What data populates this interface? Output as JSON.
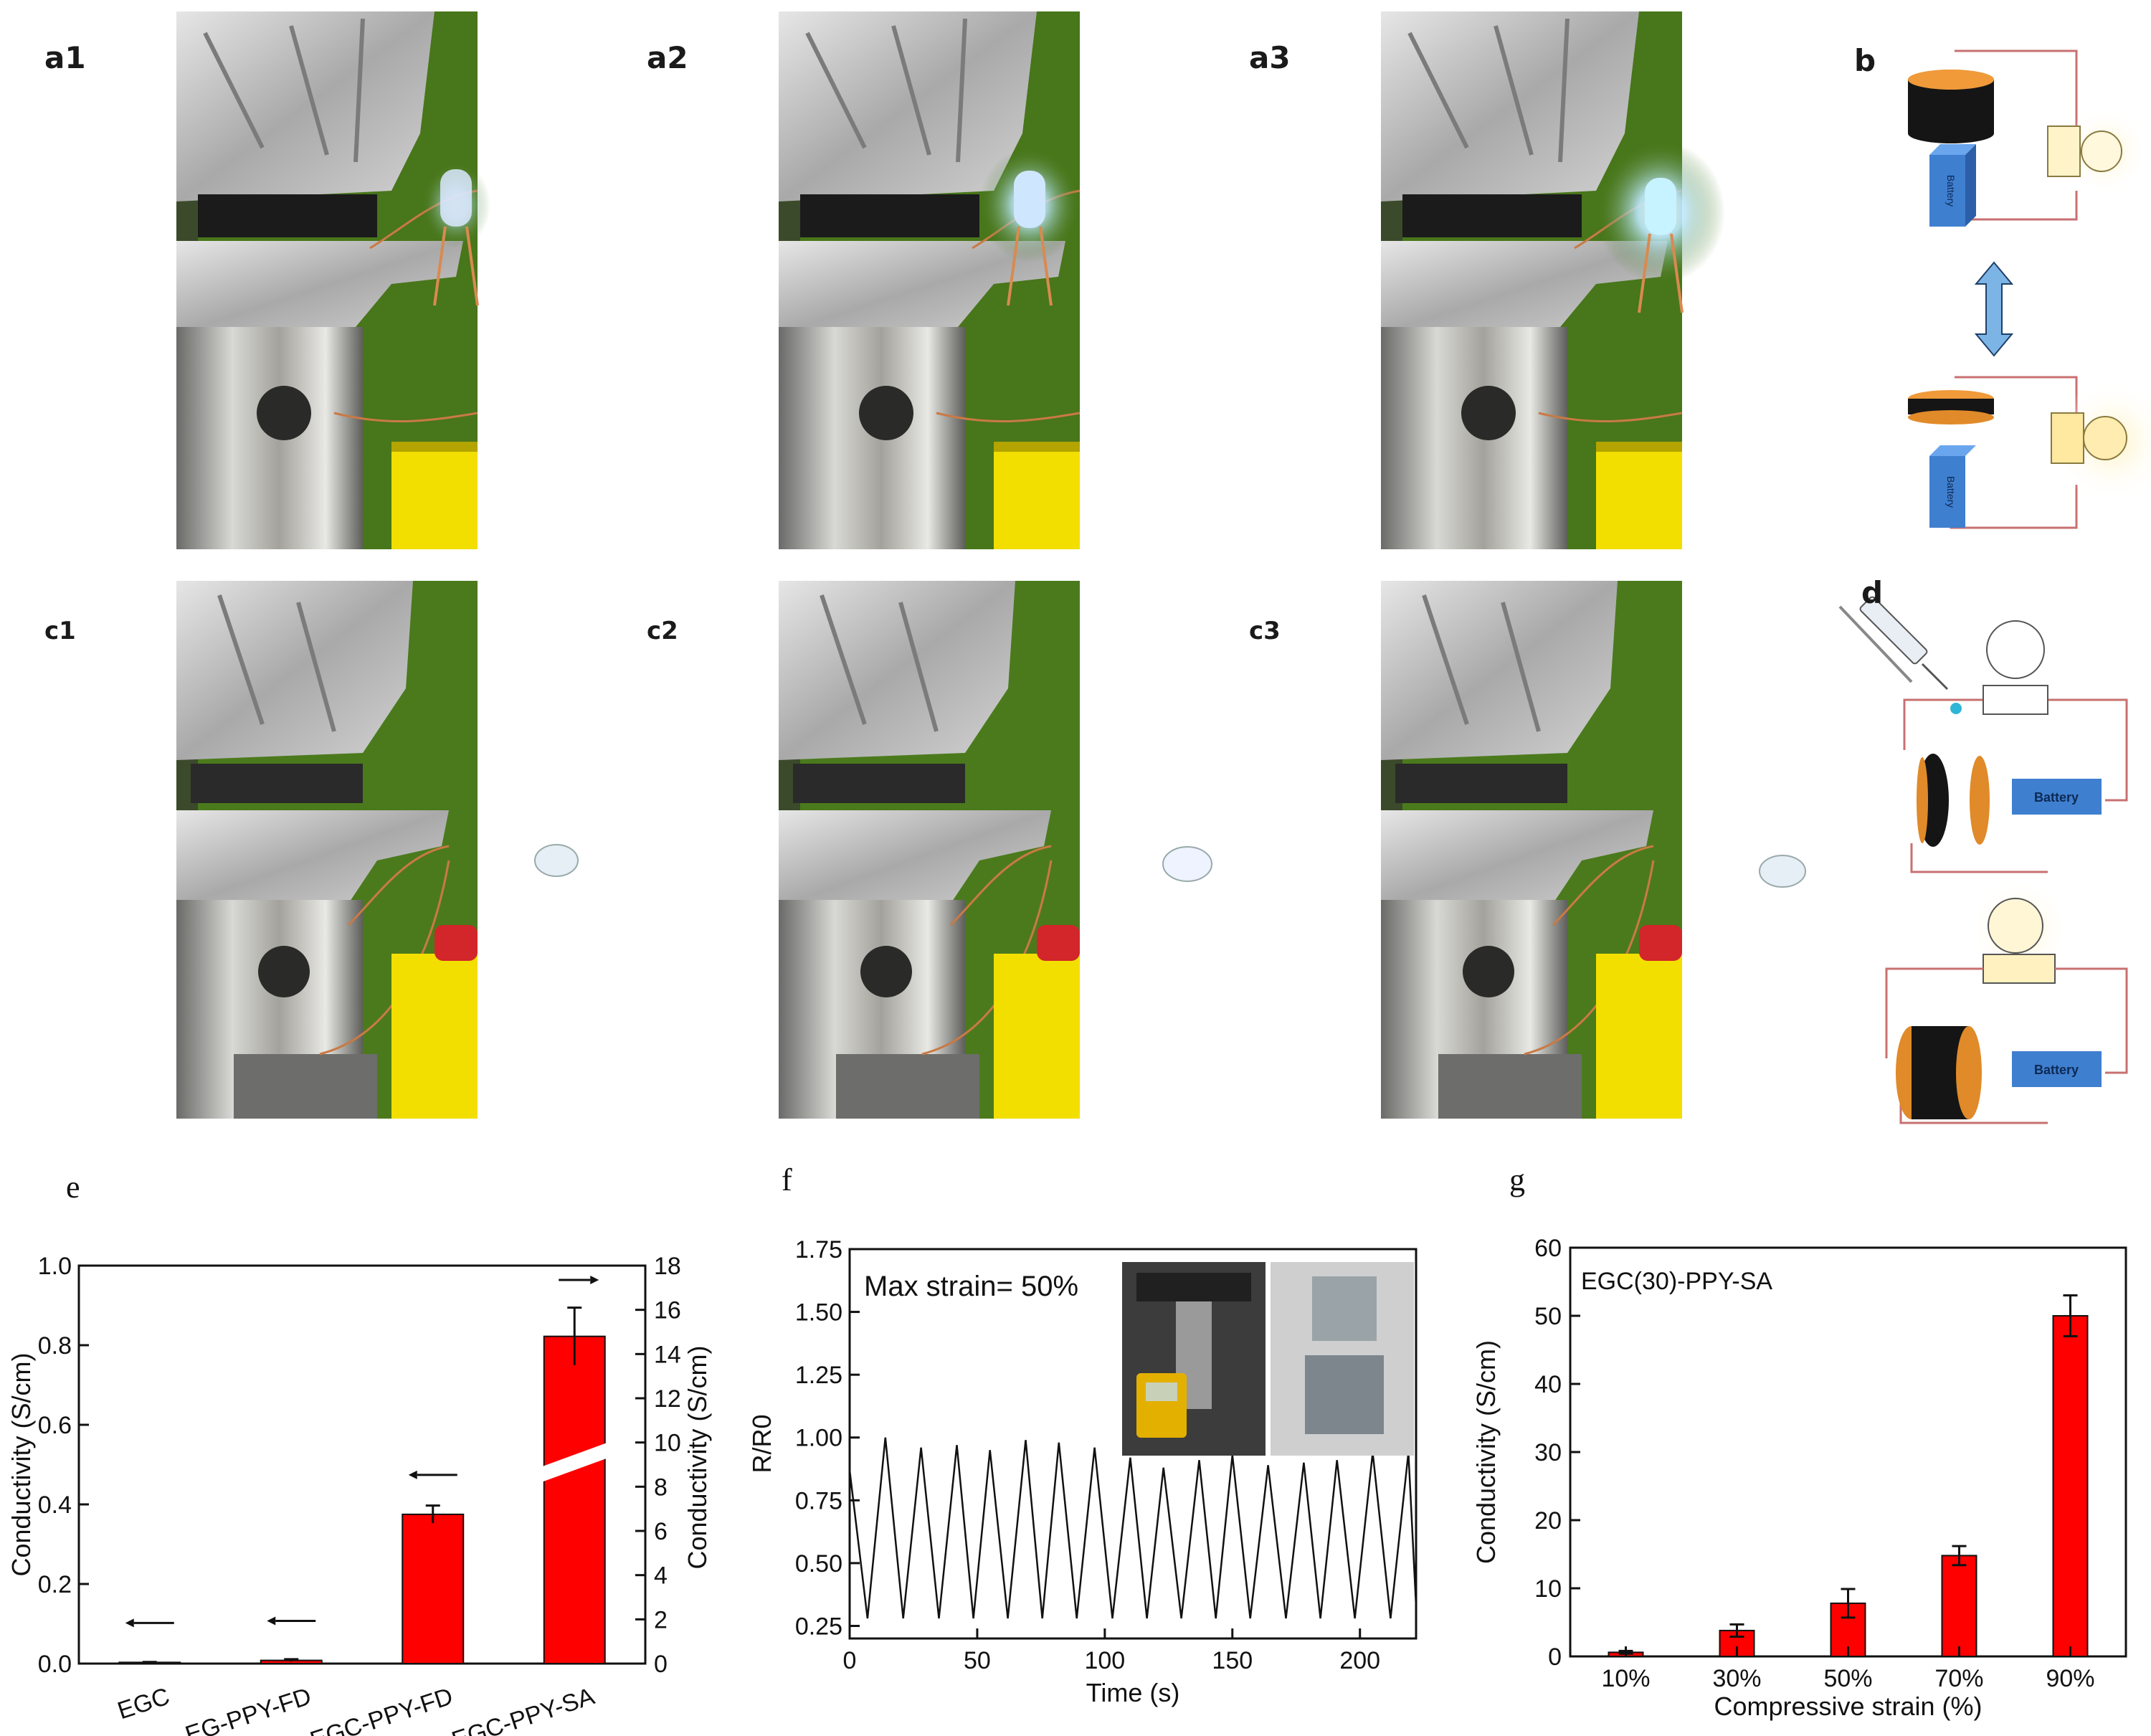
{
  "panels": {
    "a1": "a1",
    "a2": "a2",
    "a3": "a3",
    "b": "b",
    "c1": "c1",
    "c2": "c2",
    "c3": "c3",
    "d": "d",
    "e": "e",
    "f": "f",
    "g": "g"
  },
  "schematic_b": {
    "battery_label": "Battery"
  },
  "schematic_d": {
    "battery_label": "Battery"
  },
  "colors": {
    "bar": "#ff0000",
    "background_green": "#4b7a1c",
    "yellow_block": "#f2df00"
  },
  "chart_data": [
    {
      "panel": "e",
      "type": "bar",
      "categories": [
        "EGC",
        "EG-PPY-FD",
        "EGC-PPY-FD",
        "EGC-PPY-SA"
      ],
      "values": [
        0.003,
        0.008,
        0.375,
        14.8
      ],
      "errors": [
        0.001,
        0.003,
        0.022,
        1.3
      ],
      "value_axis": [
        "left",
        "left",
        "left",
        "right"
      ],
      "ylabel": "Conductivity (S/cm)",
      "y2label": "Conductivity (S/cm)",
      "ylim": [
        0,
        1.0
      ],
      "y2lim": [
        0,
        18
      ],
      "yticks": [
        "0.0",
        "0.2",
        "0.4",
        "0.6",
        "0.8",
        "1.0"
      ],
      "y2ticks": [
        "0",
        "2",
        "4",
        "6",
        "8",
        "10",
        "12",
        "14",
        "16",
        "18"
      ],
      "axis_break": "EGC-PPY-SA"
    },
    {
      "panel": "f",
      "type": "line",
      "xlabel": "Time (s)",
      "ylabel": "R/R0",
      "xlim": [
        0,
        222
      ],
      "ylim": [
        0.2,
        1.75
      ],
      "xticks": [
        "0",
        "50",
        "100",
        "150",
        "200"
      ],
      "yticks": [
        "0.25",
        "0.50",
        "0.75",
        "1.00",
        "1.25",
        "1.50",
        "1.75"
      ],
      "annotation": "Max strain= 50%",
      "cycle_period": 13.6,
      "min": 0.28,
      "peaks_x": [
        0,
        14,
        28,
        42,
        55,
        69,
        82,
        96,
        110,
        123,
        137,
        150,
        164,
        178,
        191,
        205,
        219
      ],
      "peaks_y": [
        0.87,
        1.0,
        0.96,
        0.97,
        0.95,
        0.99,
        0.98,
        0.96,
        0.92,
        0.88,
        0.91,
        0.93,
        0.89,
        0.9,
        0.91,
        0.94,
        0.94
      ]
    },
    {
      "panel": "g",
      "type": "bar",
      "categories": [
        "10%",
        "30%",
        "50%",
        "70%",
        "90%"
      ],
      "values": [
        0.6,
        3.8,
        7.8,
        14.8,
        50.0
      ],
      "errors": [
        0.2,
        0.9,
        2.1,
        1.4,
        3.0
      ],
      "xlabel": "Compressive strain (%)",
      "ylabel": "Conductivity (S/cm)",
      "ylim": [
        0,
        60
      ],
      "yticks": [
        "0",
        "10",
        "20",
        "30",
        "40",
        "50",
        "60"
      ],
      "legend": "EGC(30)-PPY-SA"
    }
  ]
}
